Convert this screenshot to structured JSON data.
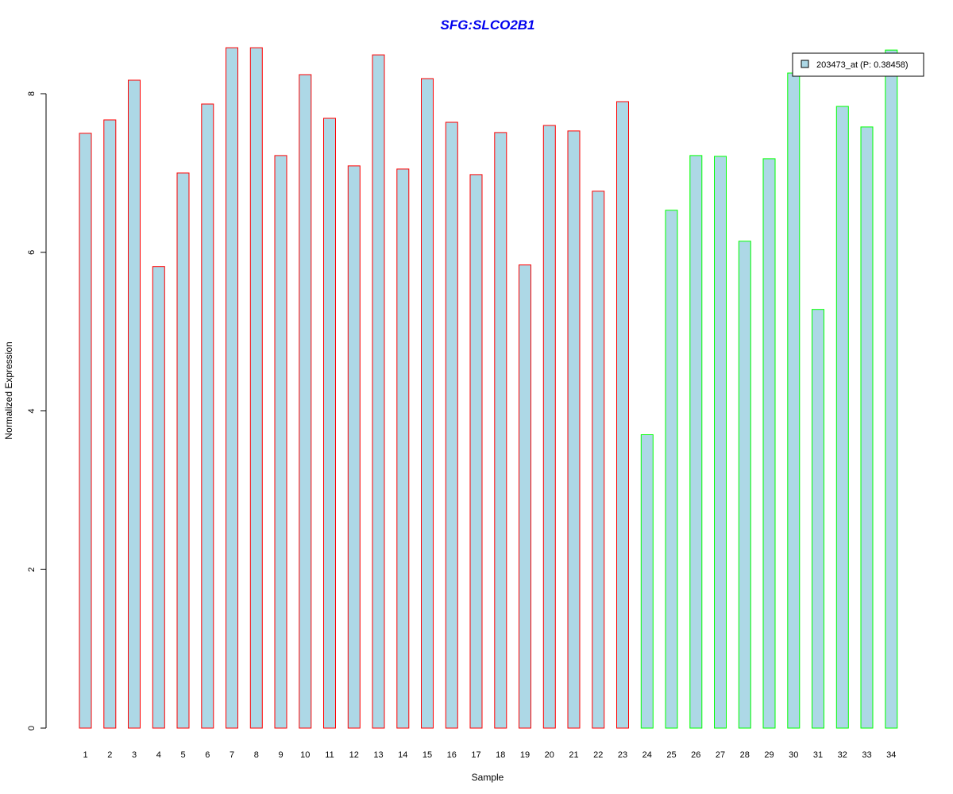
{
  "chart_data": {
    "type": "bar",
    "title": "SFG:SLCO2B1",
    "xlabel": "Sample",
    "ylabel": "Normalized Expression",
    "ylim": [
      0,
      8.6
    ],
    "yticks": [
      0,
      2,
      4,
      6,
      8
    ],
    "categories": [
      "1",
      "2",
      "3",
      "4",
      "5",
      "6",
      "7",
      "8",
      "9",
      "10",
      "11",
      "12",
      "13",
      "14",
      "15",
      "16",
      "17",
      "18",
      "19",
      "20",
      "21",
      "22",
      "23",
      "24",
      "25",
      "26",
      "27",
      "28",
      "29",
      "30",
      "31",
      "32",
      "33",
      "34"
    ],
    "series": [
      {
        "name": "203473_at (P: 0.38458)",
        "fill": "#add8e6",
        "values": [
          7.5,
          7.67,
          8.17,
          5.82,
          7.0,
          7.87,
          8.58,
          8.58,
          7.22,
          8.24,
          7.69,
          7.09,
          8.49,
          7.05,
          8.19,
          7.64,
          6.98,
          7.51,
          5.84,
          7.6,
          7.53,
          6.77,
          7.9,
          3.7,
          6.53,
          7.22,
          7.21,
          6.14,
          7.18,
          8.26,
          5.28,
          7.84,
          7.58,
          8.55
        ]
      }
    ],
    "outline_colors": [
      "#ff0000",
      "#ff0000",
      "#ff0000",
      "#ff0000",
      "#ff0000",
      "#ff0000",
      "#ff0000",
      "#ff0000",
      "#ff0000",
      "#ff0000",
      "#ff0000",
      "#ff0000",
      "#ff0000",
      "#ff0000",
      "#ff0000",
      "#ff0000",
      "#ff0000",
      "#ff0000",
      "#ff0000",
      "#ff0000",
      "#ff0000",
      "#ff0000",
      "#ff0000",
      "#00ff00",
      "#00ff00",
      "#00ff00",
      "#00ff00",
      "#00ff00",
      "#00ff00",
      "#00ff00",
      "#00ff00",
      "#00ff00",
      "#00ff00",
      "#00ff00"
    ],
    "legend": {
      "label": "203473_at (P: 0.38458)",
      "placement": "top-right"
    },
    "grid": false
  }
}
